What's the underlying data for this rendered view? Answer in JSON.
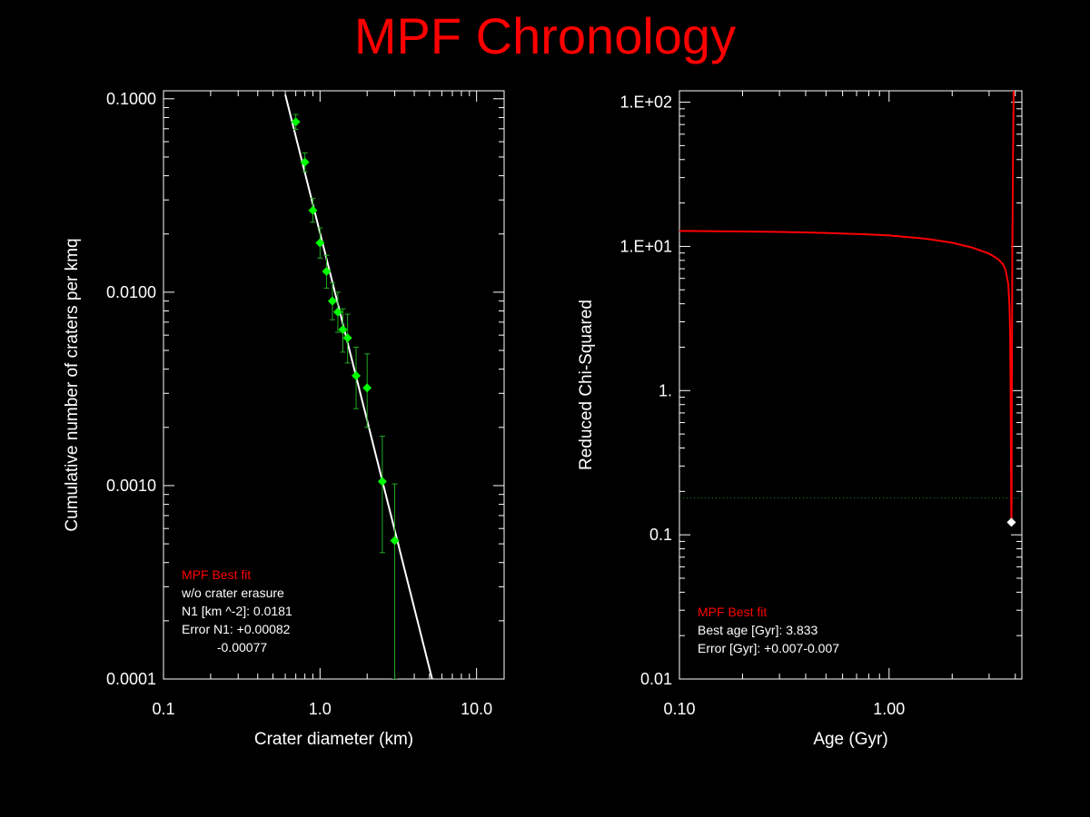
{
  "title": "MPF Chronology",
  "colors": {
    "background": "#000000",
    "title": "#ff0000",
    "axes": "#ffffff",
    "points": "#00ff00",
    "errorbars": "#22aa22",
    "fit_line": "#ffffff",
    "curve": "#ff0000",
    "threshold": "#2f7f2f",
    "legend_highlight": "#ff0000"
  },
  "chart_data": [
    {
      "type": "scatter",
      "xlabel": "Crater diameter (km)",
      "ylabel": "Cumulative number of craters per kmq",
      "xscale": "log",
      "yscale": "log",
      "xlim": [
        0.1,
        15
      ],
      "ylim": [
        0.0001,
        0.11
      ],
      "xticks": [
        0.1,
        1.0,
        10.0
      ],
      "xtick_labels": [
        "0.1",
        "1.0",
        "10.0"
      ],
      "yticks": [
        0.0001,
        0.001,
        0.01,
        0.1
      ],
      "ytick_labels": [
        "0.0001",
        "0.0010",
        "0.0100",
        "0.1000"
      ],
      "grid": false,
      "legend_position": "bottom-left",
      "points": [
        {
          "x": 0.7,
          "y": 0.076,
          "ylo": 0.0695,
          "yhi": 0.083
        },
        {
          "x": 0.8,
          "y": 0.047,
          "ylo": 0.042,
          "yhi": 0.0525
        },
        {
          "x": 0.9,
          "y": 0.0265,
          "ylo": 0.023,
          "yhi": 0.0305
        },
        {
          "x": 1.0,
          "y": 0.018,
          "ylo": 0.015,
          "yhi": 0.0215
        },
        {
          "x": 1.1,
          "y": 0.0128,
          "ylo": 0.0105,
          "yhi": 0.0155
        },
        {
          "x": 1.2,
          "y": 0.009,
          "ylo": 0.0072,
          "yhi": 0.0112
        },
        {
          "x": 1.3,
          "y": 0.0079,
          "ylo": 0.0062,
          "yhi": 0.01
        },
        {
          "x": 1.4,
          "y": 0.0064,
          "ylo": 0.0049,
          "yhi": 0.0082
        },
        {
          "x": 1.5,
          "y": 0.0058,
          "ylo": 0.0043,
          "yhi": 0.0077
        },
        {
          "x": 1.7,
          "y": 0.0037,
          "ylo": 0.0025,
          "yhi": 0.0052
        },
        {
          "x": 2.0,
          "y": 0.0032,
          "ylo": 0.002,
          "yhi": 0.0048
        },
        {
          "x": 2.5,
          "y": 0.00105,
          "ylo": 0.00045,
          "yhi": 0.0018
        },
        {
          "x": 3.0,
          "y": 0.00052,
          "ylo": 0.0001,
          "yhi": 0.00102
        }
      ],
      "fit_line": {
        "x": [
          0.6,
          5.2
        ],
        "y": [
          0.105,
          0.0001
        ]
      },
      "legend": {
        "title": "MPF Best fit",
        "lines": [
          "w/o crater erasure",
          "N1 [km ^-2]: 0.0181",
          "Error N1: +0.00082",
          "          -0.00077"
        ]
      }
    },
    {
      "type": "line",
      "xlabel": "Age (Gyr)",
      "ylabel": "Reduced Chi-Squared",
      "xscale": "log",
      "yscale": "log",
      "xlim": [
        0.1,
        4.3
      ],
      "ylim": [
        0.01,
        120
      ],
      "xticks": [
        0.1,
        1.0
      ],
      "xtick_labels": [
        "0.10",
        "1.00"
      ],
      "yticks": [
        0.01,
        0.1,
        1,
        10,
        100
      ],
      "ytick_labels": [
        "0.01",
        "0.1",
        "1.",
        "1.E+01",
        "1.E+02"
      ],
      "grid": false,
      "legend_position": "bottom-left",
      "series": [
        {
          "x": [
            0.1,
            0.2,
            0.3,
            0.5,
            0.8,
            1.0,
            1.5,
            2.0,
            2.5,
            3.0,
            3.3,
            3.5,
            3.6,
            3.7,
            3.75,
            3.78,
            3.8,
            3.815,
            3.825,
            3.833,
            3.84,
            3.85,
            3.87,
            3.9,
            3.93
          ],
          "y": [
            12.8,
            12.7,
            12.6,
            12.4,
            12.1,
            11.9,
            11.3,
            10.6,
            9.8,
            8.9,
            8.2,
            7.5,
            6.8,
            5.5,
            4.0,
            2.5,
            1.0,
            0.35,
            0.16,
            0.122,
            0.16,
            0.8,
            8.0,
            40.0,
            120.0
          ]
        }
      ],
      "threshold": 0.18,
      "best_point": {
        "x": 3.833,
        "y": 0.122
      },
      "legend": {
        "title": "MPF Best fit",
        "lines": [
          "Best age [Gyr]: 3.833",
          "Error [Gyr]: +0.007-0.007"
        ]
      }
    }
  ]
}
